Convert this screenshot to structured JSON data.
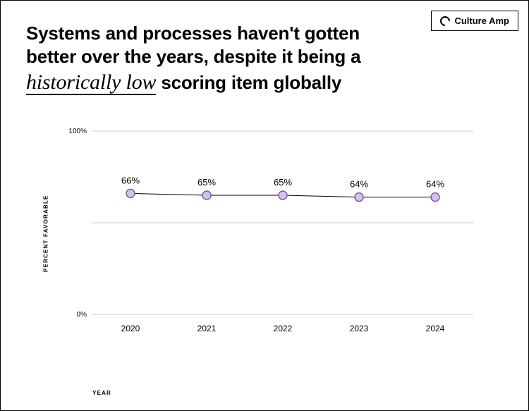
{
  "brand": {
    "label": "Culture Amp"
  },
  "title": {
    "pre": "Systems and processes haven't gotten better over the years, despite it being a ",
    "script": "historically low",
    "post": " scoring item globally"
  },
  "chart": {
    "type": "line",
    "ylabel": "PERCENT FAVORABLE",
    "xlabel": "YEAR",
    "ylim": [
      0,
      100
    ],
    "yticks": [
      {
        "value": 0,
        "label": "0%"
      },
      {
        "value": 100,
        "label": "100%"
      }
    ],
    "gridlines_y": [
      0,
      50,
      100
    ],
    "categories": [
      "2020",
      "2021",
      "2022",
      "2023",
      "2024"
    ],
    "values": [
      66,
      65,
      65,
      64,
      64
    ],
    "point_labels": [
      "66%",
      "65%",
      "65%",
      "64%",
      "64%"
    ],
    "line_color": "#000000",
    "line_width": 1,
    "marker_fill": "#d5c2ec",
    "marker_stroke": "#7a5ea8",
    "marker_stroke_width": 1.5,
    "marker_radius": 6,
    "gridline_color": "#c9c9c9",
    "background_color": "#ffffff",
    "label_fontsize": 13,
    "label_fontweight": 500,
    "tick_fontsize": 10,
    "xtick_fontsize": 12
  }
}
